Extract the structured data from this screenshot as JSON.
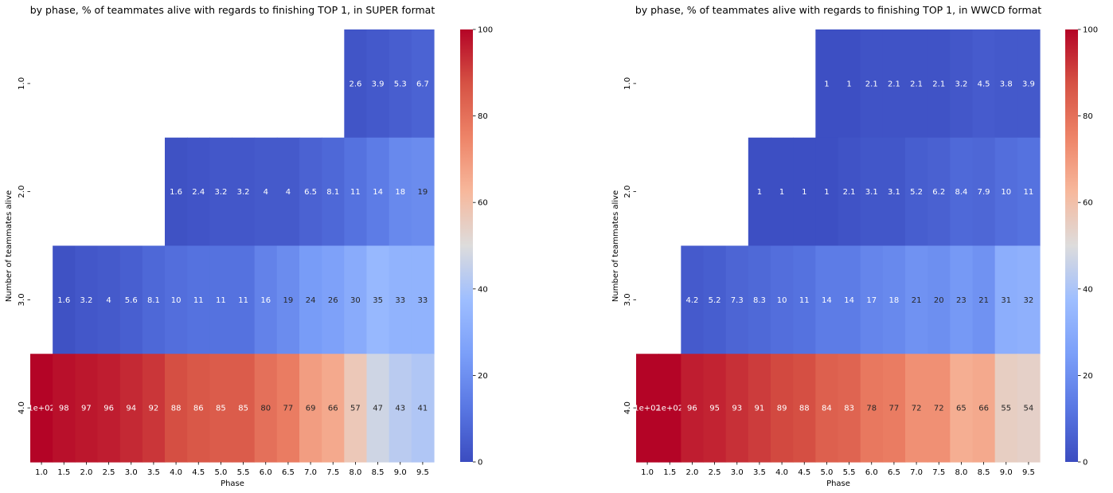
{
  "chart_data": [
    {
      "type": "heatmap",
      "title": "by phase, % of teammates alive with regards to finishing TOP 1, in SUPER format",
      "xlabel": "Phase",
      "ylabel": "Number of teammates alive",
      "x": [
        "1.0",
        "1.5",
        "2.0",
        "2.5",
        "3.0",
        "3.5",
        "4.0",
        "4.5",
        "5.0",
        "5.5",
        "6.0",
        "6.5",
        "7.0",
        "7.5",
        "8.0",
        "8.5",
        "9.0",
        "9.5"
      ],
      "y": [
        "1.0",
        "2.0",
        "3.0",
        "4.0"
      ],
      "values": [
        [
          null,
          null,
          null,
          null,
          null,
          null,
          null,
          null,
          null,
          null,
          null,
          null,
          null,
          null,
          2.6,
          3.9,
          5.3,
          6.7
        ],
        [
          null,
          null,
          null,
          null,
          null,
          null,
          1.6,
          2.4,
          3.2,
          3.2,
          4,
          4,
          6.5,
          8.1,
          11,
          14,
          18,
          19
        ],
        [
          null,
          1.6,
          3.2,
          4,
          5.6,
          8.1,
          10,
          11,
          11,
          11,
          16,
          19,
          24,
          26,
          30,
          35,
          33,
          33
        ],
        [
          100,
          98,
          97,
          96,
          94,
          92,
          88,
          86,
          85,
          85,
          80,
          77,
          69,
          66,
          57,
          47,
          43,
          41
        ]
      ],
      "labels": [
        [
          "",
          "",
          "",
          "",
          "",
          "",
          "",
          "",
          "",
          "",
          "",
          "",
          "",
          "",
          "2.6",
          "3.9",
          "5.3",
          "6.7"
        ],
        [
          "",
          "",
          "",
          "",
          "",
          "",
          "1.6",
          "2.4",
          "3.2",
          "3.2",
          "4",
          "4",
          "6.5",
          "8.1",
          "11",
          "14",
          "18",
          "19"
        ],
        [
          "",
          "1.6",
          "3.2",
          "4",
          "5.6",
          "8.1",
          "10",
          "11",
          "11",
          "11",
          "16",
          "19",
          "24",
          "26",
          "30",
          "35",
          "33",
          "33"
        ],
        [
          "1e+02",
          "98",
          "97",
          "96",
          "94",
          "92",
          "88",
          "86",
          "85",
          "85",
          "80",
          "77",
          "69",
          "66",
          "57",
          "47",
          "43",
          "41"
        ]
      ],
      "colorbar": {
        "range": [
          0,
          100
        ],
        "ticks": [
          "0",
          "20",
          "40",
          "60",
          "80",
          "100"
        ]
      },
      "colormap": "coolwarm"
    },
    {
      "type": "heatmap",
      "title": "by phase, % of teammates alive with regards to finishing TOP 1, in WWCD format",
      "xlabel": "Phase",
      "ylabel": "Number of teammates alive",
      "x": [
        "1.0",
        "1.5",
        "2.0",
        "2.5",
        "3.0",
        "3.5",
        "4.0",
        "4.5",
        "5.0",
        "5.5",
        "6.0",
        "6.5",
        "7.0",
        "7.5",
        "8.0",
        "8.5",
        "9.0",
        "9.5"
      ],
      "y": [
        "1.0",
        "2.0",
        "3.0",
        "4.0"
      ],
      "values": [
        [
          null,
          null,
          null,
          null,
          null,
          null,
          null,
          null,
          1,
          1,
          2.1,
          2.1,
          2.1,
          2.1,
          3.2,
          4.5,
          3.8,
          3.9
        ],
        [
          null,
          null,
          null,
          null,
          null,
          1,
          1,
          1,
          1,
          2.1,
          3.1,
          3.1,
          5.2,
          6.2,
          8.4,
          7.9,
          10,
          11
        ],
        [
          null,
          null,
          4.2,
          5.2,
          7.3,
          8.3,
          10,
          11,
          14,
          14,
          17,
          18,
          21,
          20,
          23,
          21,
          31,
          32
        ],
        [
          100,
          100,
          96,
          95,
          93,
          91,
          89,
          88,
          84,
          83,
          78,
          77,
          72,
          72,
          65,
          66,
          55,
          54
        ]
      ],
      "labels": [
        [
          "",
          "",
          "",
          "",
          "",
          "",
          "",
          "",
          "1",
          "1",
          "2.1",
          "2.1",
          "2.1",
          "2.1",
          "3.2",
          "4.5",
          "3.8",
          "3.9"
        ],
        [
          "",
          "",
          "",
          "",
          "",
          "1",
          "1",
          "1",
          "1",
          "2.1",
          "3.1",
          "3.1",
          "5.2",
          "6.2",
          "8.4",
          "7.9",
          "10",
          "11"
        ],
        [
          "",
          "",
          "4.2",
          "5.2",
          "7.3",
          "8.3",
          "10",
          "11",
          "14",
          "14",
          "17",
          "18",
          "21",
          "20",
          "23",
          "21",
          "31",
          "32"
        ],
        [
          "1e+02",
          "1e+02",
          "96",
          "95",
          "93",
          "91",
          "89",
          "88",
          "84",
          "83",
          "78",
          "77",
          "72",
          "72",
          "65",
          "66",
          "55",
          "54"
        ]
      ],
      "colorbar": {
        "range": [
          0,
          100
        ],
        "ticks": [
          "0",
          "20",
          "40",
          "60",
          "80",
          "100"
        ]
      },
      "colormap": "coolwarm"
    }
  ]
}
